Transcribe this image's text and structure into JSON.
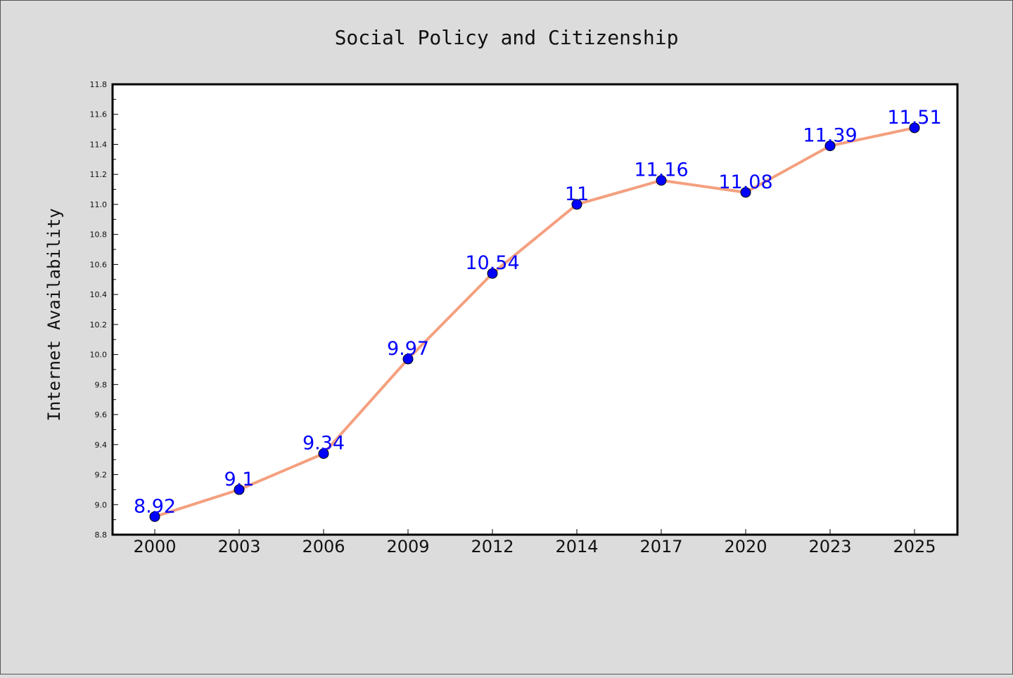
{
  "chart_data": {
    "type": "line",
    "title": "Social Policy and Citizenship",
    "xlabel": "",
    "ylabel": "Internet Availability",
    "categories": [
      "2000",
      "2003",
      "2006",
      "2009",
      "2012",
      "2014",
      "2017",
      "2020",
      "2023",
      "2025"
    ],
    "series": [
      {
        "values": [
          8.92,
          9.1,
          9.34,
          9.97,
          10.54,
          11,
          11.16,
          11.08,
          11.39,
          11.51
        ],
        "data_labels": [
          "8.92",
          "9.1",
          "9.34",
          "9.97",
          "10.54",
          "11",
          "11.16",
          "11.08",
          "11.39",
          "11.51"
        ]
      }
    ],
    "ylim": [
      8.8,
      11.8
    ],
    "yticks": [
      "8.8",
      "9.0",
      "9.2",
      "9.4",
      "9.6",
      "9.8",
      "10.0",
      "10.2",
      "10.4",
      "10.6",
      "10.8",
      "11.0",
      "11.2",
      "11.4",
      "11.6",
      "11.8"
    ],
    "grid": false,
    "legend": "none",
    "colors": {
      "background": "#dcdcdc",
      "plot_area": "#ffffff",
      "line": "#f4a07f",
      "marker": "#0000ff",
      "marker_edge": "#000000",
      "data_label": "#0000ff"
    }
  }
}
